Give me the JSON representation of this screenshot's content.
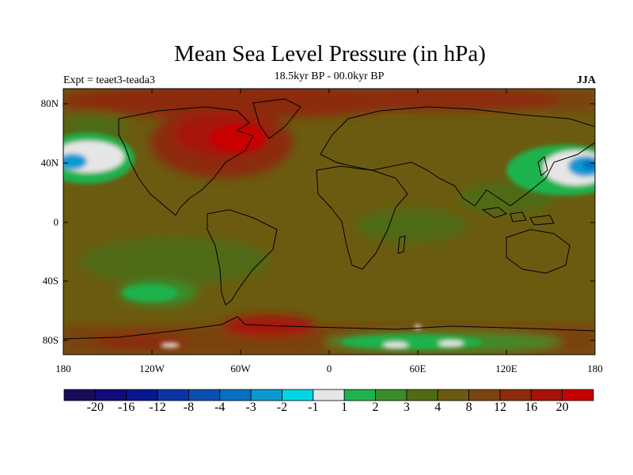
{
  "plot": {
    "title": "Mean Sea Level Pressure (in hPa)",
    "subtitle": "18.5kyr BP - 00.0kyr BP",
    "left_label": "Expt = teaet3-teada3",
    "right_label": "JJA"
  },
  "axes": {
    "y_ticks": [
      "80N",
      "40N",
      "0",
      "40S",
      "80S"
    ],
    "x_ticks": [
      "180",
      "120W",
      "60W",
      "0",
      "60E",
      "120E",
      "180"
    ]
  },
  "colorbar": {
    "colors": [
      "#1a0b5b",
      "#100c7a",
      "#08178f",
      "#0a35a3",
      "#0a4fb0",
      "#0670c0",
      "#0a9ad1",
      "#00d5e6",
      "#e6e6e6",
      "#1fb34e",
      "#3b8c2a",
      "#4f6b16",
      "#6b5b10",
      "#7a4310",
      "#8c2c0c",
      "#a61208",
      "#c80000"
    ],
    "labels": [
      "-20",
      "-16",
      "-12",
      "-8",
      "-4",
      "-3",
      "-2",
      "-1",
      "1",
      "2",
      "3",
      "4",
      "8",
      "12",
      "16",
      "20"
    ]
  }
}
